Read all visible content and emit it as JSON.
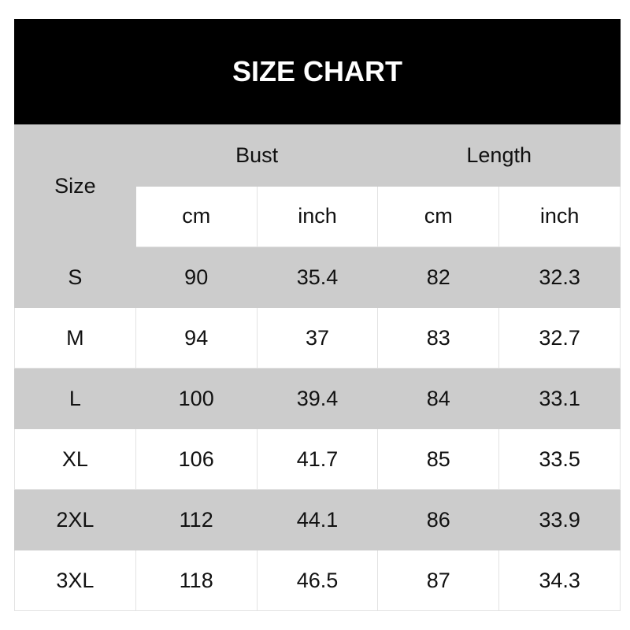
{
  "title": "SIZE CHART",
  "headers": {
    "size": "Size",
    "bust": "Bust",
    "length": "Length",
    "cm": "cm",
    "inch": "inch"
  },
  "rows": [
    {
      "size": "S",
      "bust_cm": "90",
      "bust_inch": "35.4",
      "length_cm": "82",
      "length_inch": "32.3"
    },
    {
      "size": "M",
      "bust_cm": "94",
      "bust_inch": "37",
      "length_cm": "83",
      "length_inch": "32.7"
    },
    {
      "size": "L",
      "bust_cm": "100",
      "bust_inch": "39.4",
      "length_cm": "84",
      "length_inch": "33.1"
    },
    {
      "size": "XL",
      "bust_cm": "106",
      "bust_inch": "41.7",
      "length_cm": "85",
      "length_inch": "33.5"
    },
    {
      "size": "2XL",
      "bust_cm": "112",
      "bust_inch": "44.1",
      "length_cm": "86",
      "length_inch": "33.9"
    },
    {
      "size": "3XL",
      "bust_cm": "118",
      "bust_inch": "46.5",
      "length_cm": "87",
      "length_inch": "34.3"
    }
  ],
  "colors": {
    "header_bg": "#000000",
    "stripe": "#cccccc"
  }
}
